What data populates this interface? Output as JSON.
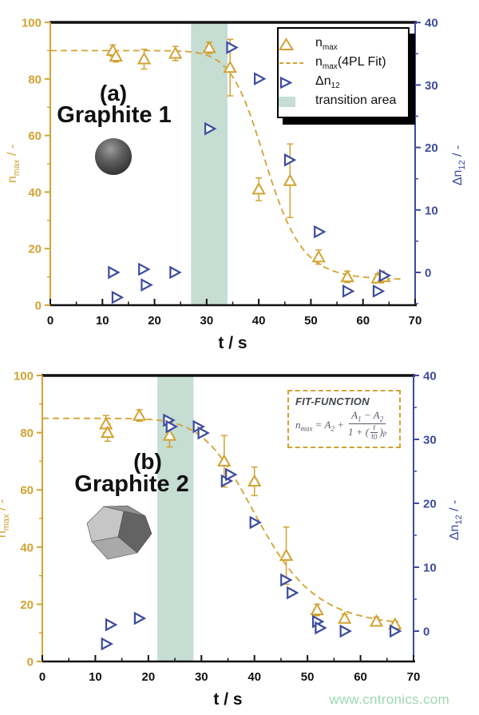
{
  "colors": {
    "gold": "#d2a232",
    "blue": "#3d4b9f",
    "band": "#c5ddd3",
    "axis_black": "#111111",
    "watermark_green": "#9fd7b5",
    "formula_gray": "#565d66"
  },
  "watermark": {
    "text": "www.cntronics.com"
  },
  "chart_data": [
    {
      "type": "scatter",
      "panel_label": "(a)",
      "panel_title": "Graphite 1",
      "illustration": "sphere",
      "xlabel": "t / s",
      "ylabel_left": {
        "pre": "n",
        "sub": "max",
        "post": " / -"
      },
      "ylabel_right": {
        "pre": "Δn",
        "sub": "12",
        "post": " / -"
      },
      "xlim": [
        0,
        70
      ],
      "xticks": [
        0,
        10,
        20,
        30,
        40,
        50,
        60,
        70
      ],
      "ylim_left": [
        0,
        100
      ],
      "yticks_left": [
        0,
        20,
        40,
        60,
        80,
        100
      ],
      "ylim_right": [
        -5.25,
        40
      ],
      "yticks_right": [
        0,
        10,
        20,
        30,
        40
      ],
      "transition_band": [
        27,
        34
      ],
      "fit": {
        "A1": 90,
        "A2": 9,
        "t0": 41.5,
        "p": 12,
        "t_end": 67.5
      },
      "nmax_points": [
        {
          "t": 12,
          "y": 90,
          "err": 2
        },
        {
          "t": 12.6,
          "y": 88,
          "err": 2
        },
        {
          "t": 18,
          "y": 87,
          "err": 3.5
        },
        {
          "t": 24,
          "y": 89,
          "err": 2.5
        },
        {
          "t": 30.5,
          "y": 91,
          "err": 2
        },
        {
          "t": 34.5,
          "y": 84,
          "err": 10
        },
        {
          "t": 40,
          "y": 41,
          "err": 4
        },
        {
          "t": 46,
          "y": 44,
          "err": 13
        },
        {
          "t": 51.5,
          "y": 17,
          "err": 2.5
        },
        {
          "t": 57,
          "y": 10,
          "err": 2
        },
        {
          "t": 62.8,
          "y": 9.5,
          "err": 1.5
        },
        {
          "t": 64,
          "y": 10,
          "err": 1
        }
      ],
      "dn12_points": [
        {
          "t": 12,
          "y": 0
        },
        {
          "t": 12.7,
          "y": -4
        },
        {
          "t": 17.8,
          "y": 0.5
        },
        {
          "t": 18.3,
          "y": -2
        },
        {
          "t": 23.8,
          "y": 0
        },
        {
          "t": 30.5,
          "y": 23
        },
        {
          "t": 34.7,
          "y": 36
        },
        {
          "t": 40,
          "y": 31
        },
        {
          "t": 45.8,
          "y": 18
        },
        {
          "t": 51.5,
          "y": 6.5
        },
        {
          "t": 57,
          "y": -3
        },
        {
          "t": 62.8,
          "y": -3
        },
        {
          "t": 64,
          "y": -0.5
        }
      ],
      "legend": {
        "items": [
          {
            "marker": "triangle-up",
            "pre": "n",
            "sub": "max",
            "post": ""
          },
          {
            "marker": "dashed-line",
            "pre": "n",
            "sub": "max",
            "post": "(4PL Fit)"
          },
          {
            "marker": "triangle-right",
            "pre": "Δn",
            "sub": "12",
            "post": ""
          },
          {
            "marker": "band-swatch",
            "pre": "transition area",
            "sub": "",
            "post": ""
          }
        ]
      }
    },
    {
      "type": "scatter",
      "panel_label": "(b)",
      "panel_title": "Graphite 2",
      "illustration": "polyhedron",
      "xlabel": "t / s",
      "ylabel_left": {
        "pre": "n",
        "sub": "max",
        "post": " / -"
      },
      "ylabel_right": {
        "pre": "Δn",
        "sub": "12",
        "post": " / -"
      },
      "xlim": [
        0,
        70
      ],
      "xticks": [
        0,
        10,
        20,
        30,
        40,
        50,
        60,
        70
      ],
      "ylim_left": [
        0,
        100
      ],
      "yticks_left": [
        0,
        20,
        40,
        60,
        80,
        100
      ],
      "ylim_right": [
        -4.75,
        40
      ],
      "yticks_right": [
        0,
        10,
        20,
        30,
        40
      ],
      "transition_band": [
        21.7,
        28.5
      ],
      "fit": {
        "A1": 85,
        "A2": 12,
        "t0": 41,
        "p": 7.5,
        "t_end": 67
      },
      "nmax_points": [
        {
          "t": 12,
          "y": 83,
          "err": 3
        },
        {
          "t": 12.3,
          "y": 80,
          "err": 3
        },
        {
          "t": 18.3,
          "y": 86,
          "err": 2
        },
        {
          "t": 24,
          "y": 79,
          "err": 4
        },
        {
          "t": 34.3,
          "y": 70,
          "err": 9
        },
        {
          "t": 40,
          "y": 63,
          "err": 5
        },
        {
          "t": 46,
          "y": 37,
          "err": 10
        },
        {
          "t": 51.8,
          "y": 18,
          "err": 2
        },
        {
          "t": 57,
          "y": 15,
          "err": 1.5
        },
        {
          "t": 63,
          "y": 14,
          "err": 1.5
        },
        {
          "t": 66.5,
          "y": 13,
          "err": 1
        }
      ],
      "dn12_points": [
        {
          "t": 12,
          "y": -2
        },
        {
          "t": 12.8,
          "y": 1
        },
        {
          "t": 18.2,
          "y": 2
        },
        {
          "t": 23.7,
          "y": 33
        },
        {
          "t": 24.2,
          "y": 32
        },
        {
          "t": 29.3,
          "y": 32
        },
        {
          "t": 30.2,
          "y": 31
        },
        {
          "t": 34.6,
          "y": 23.5
        },
        {
          "t": 35.4,
          "y": 24.5
        },
        {
          "t": 40,
          "y": 17
        },
        {
          "t": 45.8,
          "y": 8
        },
        {
          "t": 47,
          "y": 6
        },
        {
          "t": 51.8,
          "y": 1.5
        },
        {
          "t": 52.3,
          "y": 0.5
        },
        {
          "t": 57,
          "y": 0
        },
        {
          "t": 66.4,
          "y": 0
        }
      ],
      "fit_box": {
        "title": "FIT-FUNCTION",
        "lhs_pre": "n",
        "lhs_sub": "max",
        "lhs_mid": " = A",
        "lhs_sub2": "2",
        "lhs_end": " +",
        "num_a1": "A",
        "num_sub1": "1",
        "num_mid": " − A",
        "num_sub2": "2",
        "den_pre": "1 + (",
        "den_t": "t",
        "den_t0": "t",
        "den_t0_sub": "0",
        "den_close": ")",
        "exp": "p"
      }
    }
  ]
}
